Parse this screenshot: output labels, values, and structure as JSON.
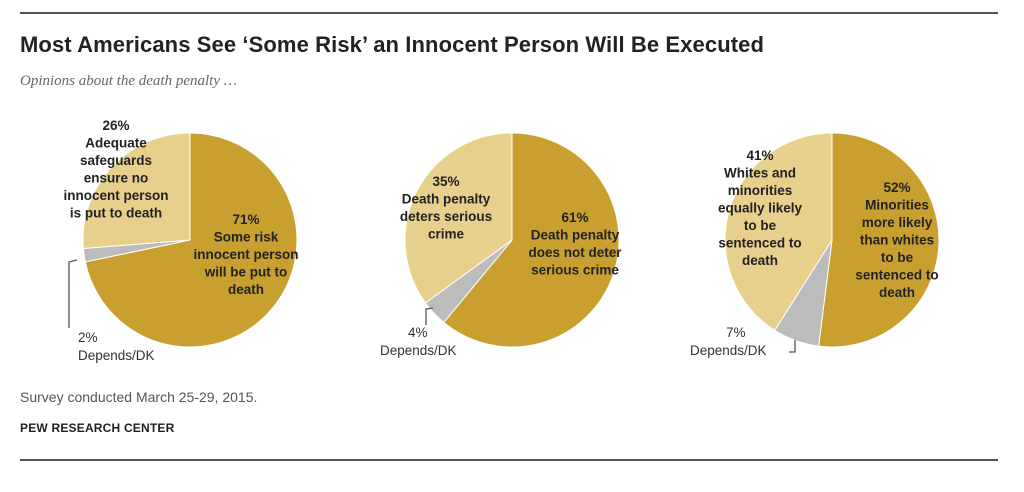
{
  "title": "Most Americans See ‘Some Risk’ an Innocent Person Will Be Executed",
  "subtitle": "Opinions about the death penalty …",
  "note": "Survey conducted March 25-29, 2015.",
  "source": "PEW RESEARCH CENTER",
  "colors": {
    "dark": "#c9a02f",
    "light": "#e7cf8c",
    "gray": "#bcbcbc",
    "line": "#555555"
  },
  "chart_data": [
    {
      "type": "pie",
      "slices": [
        {
          "value": 71,
          "pct": "71%",
          "lines": [
            "Some risk",
            "innocent person",
            "will be put to",
            "death"
          ],
          "color": "#c9a02f"
        },
        {
          "value": 2,
          "pct": "2%",
          "lines": [
            "Depends/DK"
          ],
          "color": "#bcbcbc"
        },
        {
          "value": 26,
          "pct": "26%",
          "lines": [
            "Adequate",
            "safeguards",
            "ensure no",
            "innocent person",
            "is put to death"
          ],
          "color": "#e7cf8c"
        }
      ]
    },
    {
      "type": "pie",
      "slices": [
        {
          "value": 61,
          "pct": "61%",
          "lines": [
            "Death penalty",
            "does not deter",
            "serious crime"
          ],
          "color": "#c9a02f"
        },
        {
          "value": 4,
          "pct": "4%",
          "lines": [
            "Depends/DK"
          ],
          "color": "#bcbcbc"
        },
        {
          "value": 35,
          "pct": "35%",
          "lines": [
            "Death penalty",
            "deters serious",
            "crime"
          ],
          "color": "#e7cf8c"
        }
      ]
    },
    {
      "type": "pie",
      "slices": [
        {
          "value": 52,
          "pct": "52%",
          "lines": [
            "Minorities",
            "more likely",
            "than whites",
            "to be",
            "sentenced to",
            "death"
          ],
          "color": "#c9a02f"
        },
        {
          "value": 7,
          "pct": "7%",
          "lines": [
            "Depends/DK"
          ],
          "color": "#bcbcbc"
        },
        {
          "value": 41,
          "pct": "41%",
          "lines": [
            "Whites and",
            "minorities",
            "equally likely",
            "to be",
            "sentenced to",
            "death"
          ],
          "color": "#e7cf8c"
        }
      ]
    }
  ]
}
